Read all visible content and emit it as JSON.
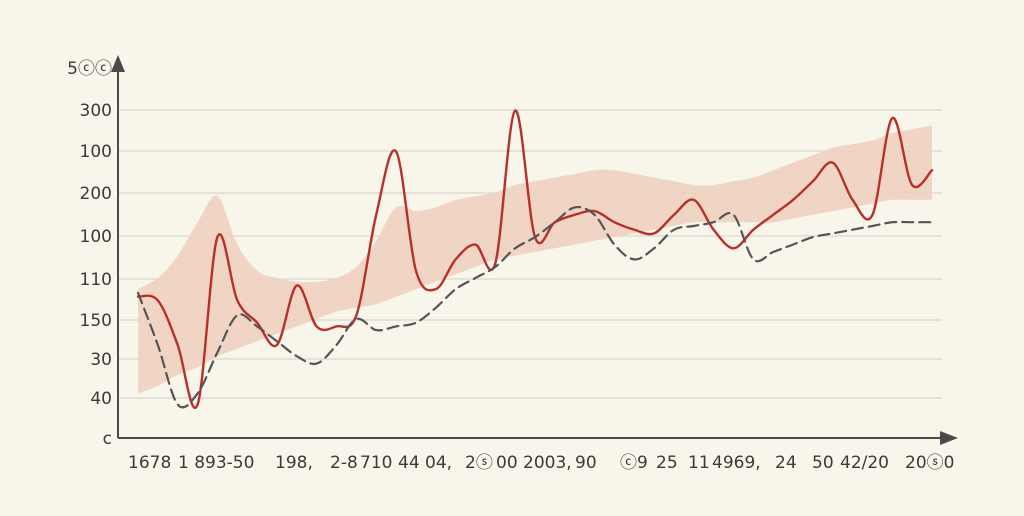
{
  "chart_data": {
    "type": "line",
    "title": "",
    "xlabel": "",
    "ylabel": "",
    "y_tick_labels": [
      "5ⓒⓒ",
      "300",
      "100",
      "200",
      "100",
      "110",
      "150",
      "30",
      "40",
      "c"
    ],
    "x_tick_labels": [
      "1678",
      "1 893-50",
      "198,",
      "2-8",
      "710",
      "44 04,",
      "2ⓢ",
      "00 2003,",
      "90",
      "ⓒ9",
      "25",
      "11",
      "4969,",
      "24",
      "50",
      "42/20",
      "20ⓢ0"
    ],
    "x": [
      0,
      1,
      2,
      3,
      4,
      5,
      6,
      7,
      8,
      9,
      10,
      11,
      12,
      13,
      14,
      15,
      16,
      17,
      18,
      19,
      20,
      21,
      22,
      23,
      24,
      25,
      26,
      27,
      28,
      29,
      30,
      31,
      32,
      33,
      34,
      35,
      36,
      37,
      38,
      39,
      40
    ],
    "series": [
      {
        "style": "solid",
        "values": [
          190,
          185,
          125,
          45,
          270,
          185,
          155,
          125,
          205,
          150,
          150,
          165,
          300,
          385,
          225,
          200,
          240,
          260,
          235,
          440,
          270,
          290,
          300,
          305,
          290,
          280,
          275,
          300,
          320,
          280,
          255,
          280,
          300,
          320,
          345,
          370,
          320,
          300,
          430,
          340,
          360
        ]
      },
      {
        "style": "dashed",
        "values": [
          195,
          125,
          45,
          60,
          115,
          165,
          150,
          130,
          110,
          100,
          125,
          160,
          145,
          150,
          155,
          175,
          200,
          215,
          230,
          255,
          270,
          290,
          310,
          300,
          260,
          240,
          255,
          280,
          285,
          290,
          300,
          240,
          250,
          260,
          270,
          275,
          280,
          285,
          290,
          290,
          290
        ]
      }
    ],
    "band": {
      "upper": [
        200,
        215,
        245,
        290,
        325,
        260,
        225,
        215,
        210,
        210,
        215,
        230,
        265,
        310,
        305,
        310,
        320,
        325,
        330,
        340,
        345,
        350,
        355,
        360,
        360,
        355,
        350,
        345,
        340,
        340,
        345,
        350,
        360,
        370,
        380,
        390,
        395,
        400,
        410,
        415,
        420
      ],
      "lower": [
        60,
        70,
        85,
        95,
        110,
        120,
        130,
        140,
        150,
        160,
        170,
        175,
        180,
        190,
        200,
        210,
        220,
        230,
        240,
        245,
        250,
        255,
        260,
        265,
        270,
        275,
        280,
        285,
        290,
        290,
        290,
        290,
        290,
        295,
        300,
        305,
        310,
        315,
        320,
        320,
        320
      ]
    },
    "ylim": [
      0,
      500
    ],
    "grid": true,
    "colors": {
      "solid": "#b8302a",
      "dashed": "#555555",
      "band": "#f0cfbd",
      "grid": "#d9d6cc",
      "axis": "#4a4a4a",
      "background": "#f8f5ea"
    }
  }
}
